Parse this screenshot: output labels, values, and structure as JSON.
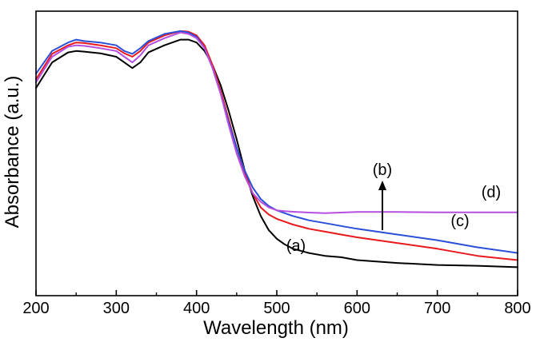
{
  "chart_data": {
    "type": "line",
    "xlabel": "Wavelength (nm)",
    "ylabel": "Absorbance (a.u.)",
    "xlim": [
      200,
      800
    ],
    "ylim": [
      0,
      1
    ],
    "xticks": [
      "200",
      "300",
      "400",
      "500",
      "600",
      "700",
      "800"
    ],
    "yticks_shown": false,
    "grid": false,
    "colors": {
      "a": "#000000",
      "b": "#2b4fd8",
      "c": "#e8191c",
      "d": "#b44fe0"
    },
    "series": [
      {
        "key": "a",
        "name": "(a)",
        "color": "#000000",
        "x": [
          200,
          220,
          240,
          250,
          260,
          280,
          300,
          310,
          320,
          330,
          340,
          360,
          380,
          390,
          400,
          410,
          420,
          430,
          440,
          450,
          460,
          470,
          480,
          490,
          500,
          510,
          520,
          540,
          560,
          580,
          600,
          650,
          700,
          750,
          800
        ],
        "y": [
          0.73,
          0.82,
          0.855,
          0.86,
          0.858,
          0.852,
          0.84,
          0.82,
          0.8,
          0.82,
          0.855,
          0.88,
          0.9,
          0.9,
          0.89,
          0.86,
          0.81,
          0.74,
          0.65,
          0.55,
          0.44,
          0.35,
          0.28,
          0.23,
          0.2,
          0.18,
          0.165,
          0.15,
          0.14,
          0.135,
          0.125,
          0.115,
          0.108,
          0.105,
          0.1
        ]
      },
      {
        "key": "b",
        "name": "(b)",
        "color": "#2b4fd8",
        "x": [
          200,
          220,
          240,
          250,
          260,
          280,
          300,
          310,
          320,
          330,
          340,
          360,
          380,
          390,
          400,
          410,
          420,
          430,
          440,
          450,
          460,
          470,
          480,
          490,
          500,
          510,
          520,
          540,
          560,
          580,
          600,
          650,
          700,
          750,
          800
        ],
        "y": [
          0.78,
          0.86,
          0.89,
          0.9,
          0.895,
          0.89,
          0.88,
          0.86,
          0.85,
          0.87,
          0.895,
          0.92,
          0.93,
          0.925,
          0.91,
          0.87,
          0.8,
          0.71,
          0.61,
          0.52,
          0.44,
          0.38,
          0.34,
          0.315,
          0.3,
          0.29,
          0.28,
          0.265,
          0.255,
          0.245,
          0.235,
          0.215,
          0.195,
          0.17,
          0.15
        ]
      },
      {
        "key": "c",
        "name": "(c)",
        "color": "#e8191c",
        "x": [
          200,
          220,
          240,
          250,
          260,
          280,
          300,
          310,
          320,
          330,
          340,
          360,
          380,
          390,
          400,
          410,
          420,
          430,
          440,
          450,
          460,
          470,
          480,
          490,
          500,
          510,
          520,
          540,
          560,
          580,
          600,
          650,
          700,
          750,
          800
        ],
        "y": [
          0.76,
          0.85,
          0.88,
          0.89,
          0.888,
          0.88,
          0.87,
          0.852,
          0.84,
          0.86,
          0.89,
          0.915,
          0.93,
          0.928,
          0.915,
          0.88,
          0.81,
          0.72,
          0.62,
          0.52,
          0.43,
          0.36,
          0.31,
          0.285,
          0.27,
          0.26,
          0.25,
          0.235,
          0.225,
          0.215,
          0.205,
          0.185,
          0.165,
          0.14,
          0.125
        ]
      },
      {
        "key": "d",
        "name": "(d)",
        "color": "#b44fe0",
        "x": [
          200,
          220,
          240,
          250,
          260,
          280,
          300,
          310,
          320,
          330,
          340,
          360,
          380,
          390,
          400,
          410,
          420,
          430,
          440,
          450,
          460,
          470,
          480,
          490,
          500,
          510,
          520,
          540,
          560,
          580,
          600,
          650,
          700,
          750,
          800
        ],
        "y": [
          0.75,
          0.84,
          0.875,
          0.88,
          0.878,
          0.87,
          0.86,
          0.84,
          0.82,
          0.845,
          0.88,
          0.905,
          0.925,
          0.92,
          0.905,
          0.87,
          0.8,
          0.71,
          0.6,
          0.5,
          0.42,
          0.36,
          0.33,
          0.31,
          0.3,
          0.297,
          0.295,
          0.292,
          0.29,
          0.292,
          0.294,
          0.294,
          0.293,
          0.293,
          0.293
        ]
      }
    ],
    "annotations": {
      "a": "(a)",
      "b": "(b)",
      "c": "(c)",
      "d": "(d)"
    },
    "arrow": {
      "x": 630,
      "y_from": 0.2,
      "y_to": 0.36
    }
  }
}
